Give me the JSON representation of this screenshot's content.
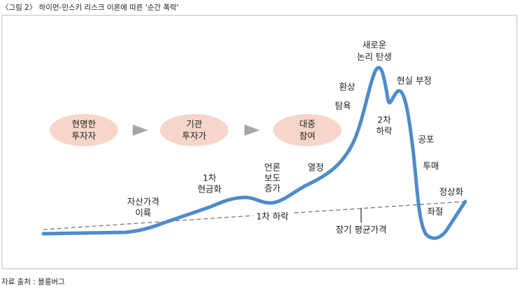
{
  "header": {
    "title": "〈그림 2〉 하이먼-민스키 리스크 이론에 따른 '순간 폭락'"
  },
  "stages": [
    {
      "lines": [
        "현명한",
        "투자자"
      ]
    },
    {
      "lines": [
        "기관",
        "투자가"
      ]
    },
    {
      "lines": [
        "대중",
        "참여"
      ]
    }
  ],
  "labels": [
    {
      "lines": [
        "자산가격",
        "이륙"
      ]
    },
    {
      "lines": [
        "1차",
        "현금화"
      ]
    },
    {
      "lines": [
        "언론",
        "보도",
        "증가"
      ]
    },
    {
      "lines": [
        "열정"
      ]
    },
    {
      "lines": [
        "탐욕"
      ]
    },
    {
      "lines": [
        "환상"
      ]
    },
    {
      "lines": [
        "새로운",
        "논리 탄생"
      ]
    },
    {
      "lines": [
        "2차",
        "하락"
      ]
    },
    {
      "lines": [
        "현실 부정"
      ]
    },
    {
      "lines": [
        "공포"
      ]
    },
    {
      "lines": [
        "투매"
      ]
    },
    {
      "lines": [
        "좌절"
      ]
    },
    {
      "lines": [
        "정상화"
      ]
    }
  ],
  "trend": {
    "first_drop": "1차 하락",
    "long_term_average": "장기 평균가격"
  },
  "footer": {
    "source": "자료 출처 : 블룸버그"
  }
}
